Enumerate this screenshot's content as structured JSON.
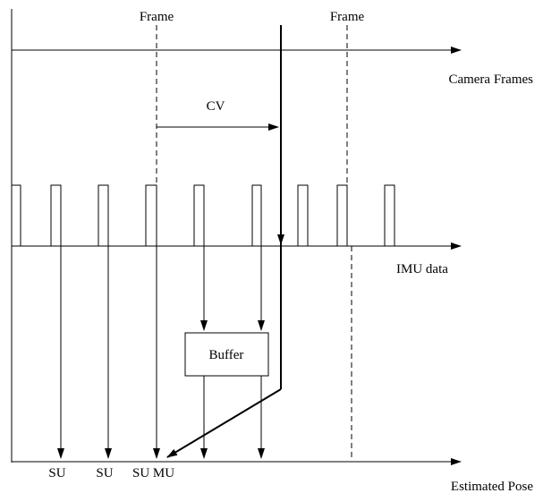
{
  "labels": {
    "frame_1": "Frame",
    "frame_2": "Frame",
    "camera_frames": "Camera Frames",
    "cv": "CV",
    "imu_data": "IMU data",
    "buffer": "Buffer",
    "su_1": "SU",
    "su_2": "SU",
    "su_mu": "SU MU",
    "estimated_pose": "Estimated Pose"
  }
}
